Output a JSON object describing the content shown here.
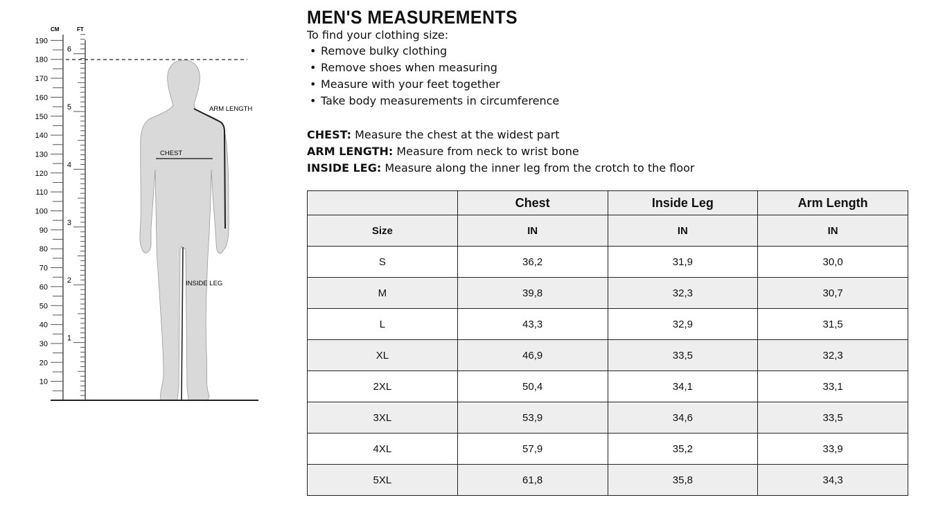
{
  "figure": {
    "unit_cm": "CM",
    "unit_ft": "FT",
    "cm_labels": [
      "190",
      "180",
      "170",
      "160",
      "150",
      "140",
      "130",
      "120",
      "110",
      "100",
      "90",
      "80",
      "70",
      "60",
      "50",
      "40",
      "30",
      "20",
      "10"
    ],
    "ft_labels": [
      "6",
      "5",
      "4",
      "3",
      "2",
      "1"
    ],
    "label_arm": "ARM LENGTH",
    "label_chest": "CHEST",
    "label_leg": "INSIDE LEG",
    "silhouette_color": "#d9d9d9"
  },
  "title": "MEN'S MEASUREMENTS",
  "intro": "To find your clothing size:",
  "tips": [
    "Remove bulky clothing",
    "Remove shoes when measuring",
    "Measure with your feet together",
    "Take body measurements in circumference"
  ],
  "definitions": [
    {
      "term": "CHEST:",
      "text": " Measure the chest at the widest part"
    },
    {
      "term": "ARM LENGTH:",
      "text": " Measure from neck to wrist bone"
    },
    {
      "term": "INSIDE LEG:",
      "text": " Measure along the inner leg from the crotch to the floor"
    }
  ],
  "table": {
    "headers": [
      "",
      "Chest",
      "Inside Leg",
      "Arm Length"
    ],
    "subheaders": [
      "Size",
      "IN",
      "IN",
      "IN"
    ],
    "rows": [
      [
        "S",
        "36,2",
        "31,9",
        "30,0"
      ],
      [
        "M",
        "39,8",
        "32,3",
        "30,7"
      ],
      [
        "L",
        "43,3",
        "32,9",
        "31,5"
      ],
      [
        "XL",
        "46,9",
        "33,5",
        "32,3"
      ],
      [
        "2XL",
        "50,4",
        "34,1",
        "33,1"
      ],
      [
        "3XL",
        "53,9",
        "34,6",
        "33,5"
      ],
      [
        "4XL",
        "57,9",
        "35,2",
        "33,9"
      ],
      [
        "5XL",
        "61,8",
        "35,8",
        "34,3"
      ]
    ]
  }
}
